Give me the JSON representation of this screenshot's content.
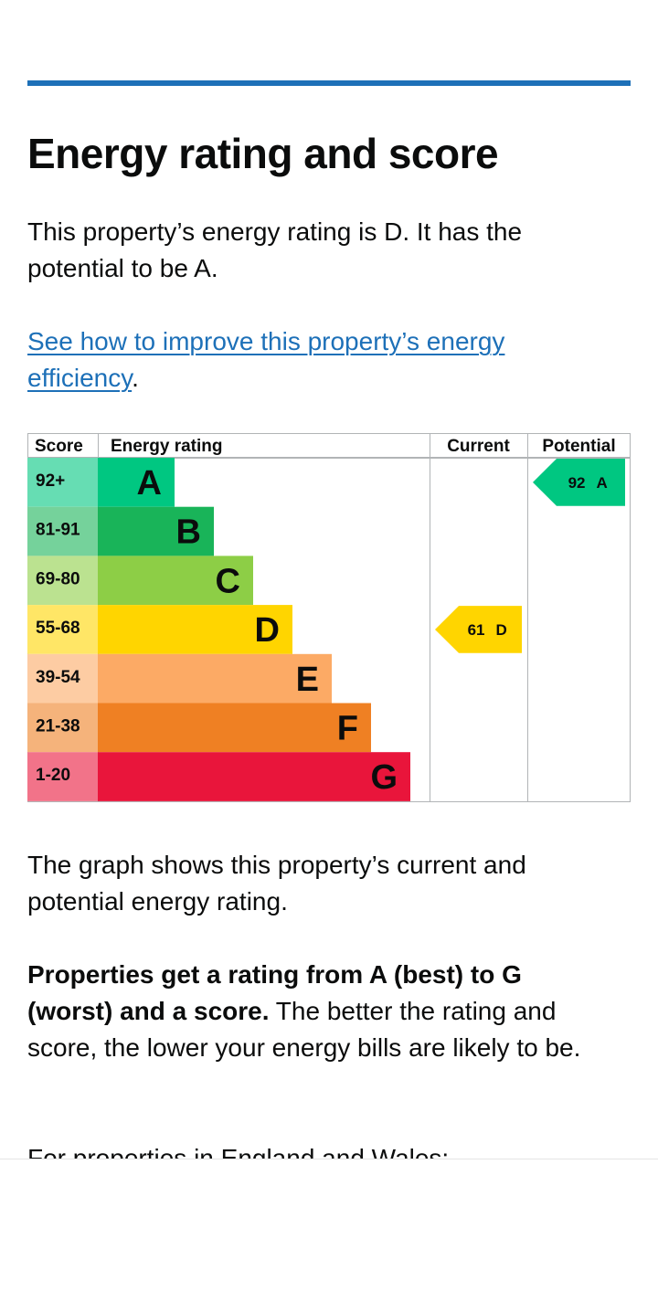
{
  "header": {
    "title": "Energy rating and score"
  },
  "intro": {
    "text": "This property’s energy rating is D. It has the potential to be A."
  },
  "improve_link": {
    "text": "See how to improve this property’s energy efficiency",
    "suffix": "."
  },
  "graph_text": "The graph shows this property’s current and potential energy rating.",
  "rating_info": {
    "bold": "Properties get a rating from A (best) to G (worst) and a score.",
    "text": " The better the rating and score, the lower your energy bills are likely to be."
  },
  "england_wales": "For properties in England and Wales:",
  "colors": {
    "accent": "#1d70b8",
    "text": "#0b0c0c",
    "grid": "#b1b4b6"
  },
  "chart_data": {
    "type": "table",
    "columns": [
      "Score",
      "Energy rating",
      "Current",
      "Potential"
    ],
    "bands": [
      {
        "letter": "A",
        "score": "92+",
        "color": "#00c781",
        "score_bg": "#66ddb3"
      },
      {
        "letter": "B",
        "score": "81-91",
        "color": "#19b459",
        "score_bg": "#75d29b"
      },
      {
        "letter": "C",
        "score": "69-80",
        "color": "#8dce46",
        "score_bg": "#bbe290"
      },
      {
        "letter": "D",
        "score": "55-68",
        "color": "#ffd500",
        "score_bg": "#ffe666"
      },
      {
        "letter": "E",
        "score": "39-54",
        "color": "#fcaa65",
        "score_bg": "#fdcca3"
      },
      {
        "letter": "F",
        "score": "21-38",
        "color": "#ef8023",
        "score_bg": "#f5b37b"
      },
      {
        "letter": "G",
        "score": "1-20",
        "color": "#e9153b",
        "score_bg": "#f27389"
      }
    ],
    "current": {
      "score": 61,
      "rating": "D"
    },
    "potential": {
      "score": 92,
      "rating": "A"
    }
  }
}
